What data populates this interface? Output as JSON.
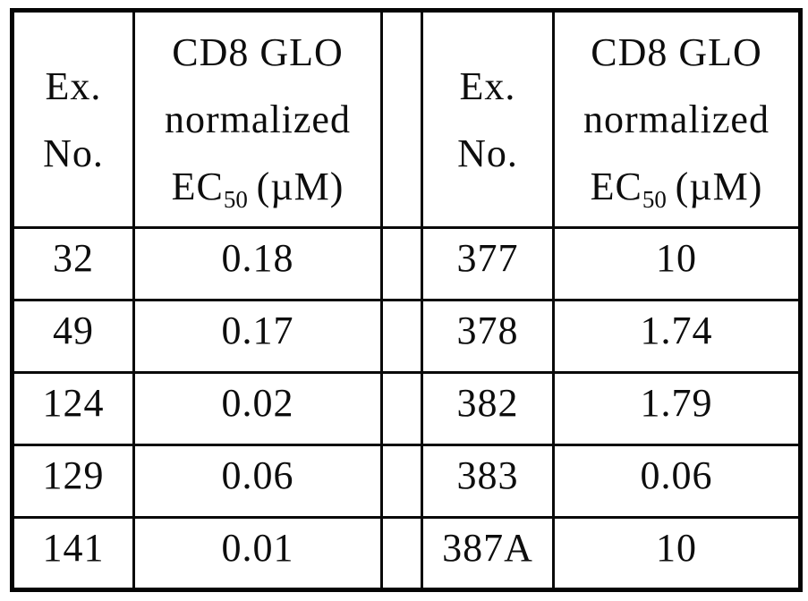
{
  "left_header": {
    "ex_line1": "Ex.",
    "ex_line2": "No.",
    "ec_line1": "CD8 GLO",
    "ec_line2": "normalized",
    "ec_line3_pre": "EC",
    "ec_line3_sub": "50",
    "ec_line3_unit": "(µM)"
  },
  "right_header": {
    "ex_line1": "Ex.",
    "ex_line2": "No.",
    "ec_line1": "CD8 GLO",
    "ec_line2": "normalized",
    "ec_line3_pre": "EC",
    "ec_line3_sub": "50",
    "ec_line3_unit": "(µM)"
  },
  "rows": [
    {
      "left_ex": "32",
      "left_ec": "0.18",
      "right_ex": "377",
      "right_ec": "10"
    },
    {
      "left_ex": "49",
      "left_ec": "0.17",
      "right_ex": "378",
      "right_ec": "1.74"
    },
    {
      "left_ex": "124",
      "left_ec": "0.02",
      "right_ex": "382",
      "right_ec": "1.79"
    },
    {
      "left_ex": "129",
      "left_ec": "0.06",
      "right_ex": "383",
      "right_ec": "0.06"
    },
    {
      "left_ex": "141",
      "left_ec": "0.01",
      "right_ex": "387A",
      "right_ec": "10"
    }
  ]
}
